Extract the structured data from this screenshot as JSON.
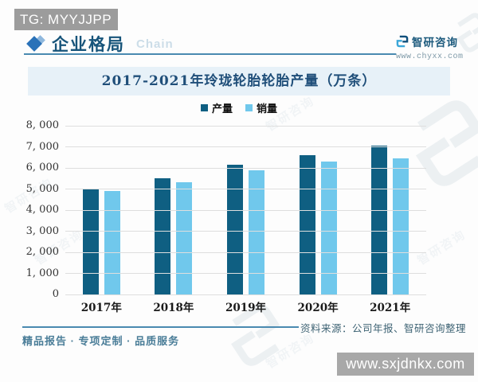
{
  "badge_top": "TG: MYYJJPP",
  "header": {
    "title": "企业格局",
    "watermark": "Chain"
  },
  "brand": {
    "name": "智研咨询",
    "url": "www.chyxx.com"
  },
  "chart_data": {
    "type": "bar",
    "title": "2017-2021年玲珑轮胎轮胎产量（万条）",
    "categories": [
      "2017年",
      "2018年",
      "2019年",
      "2020年",
      "2021年"
    ],
    "series": [
      {
        "name": "产量",
        "color": "#0f5f82",
        "values": [
          5020,
          5510,
          6170,
          6590,
          7040
        ]
      },
      {
        "name": "销量",
        "color": "#70c8ec",
        "values": [
          4900,
          5330,
          5870,
          6310,
          6460
        ]
      }
    ],
    "xlabel": "",
    "ylabel": "",
    "ylim": [
      0,
      8000
    ],
    "ytick_step": 1000,
    "ytick_labels": [
      "0",
      "1, 000",
      "2, 000",
      "3, 000",
      "4, 000",
      "5, 000",
      "6, 000",
      "7, 000",
      "8, 000"
    ],
    "grid": true,
    "legend_position": "top"
  },
  "footer": {
    "source": "资料来源：公司年报、智研咨询整理",
    "slogan": "精品报告 · 专项定制 · 品质服务"
  },
  "badge_bottom": "www.sxjdnkx.com",
  "colors": {
    "accent": "#2e86ab",
    "banner_bg": "#e7f1f8",
    "badge_gray": "#a8a8a8"
  }
}
